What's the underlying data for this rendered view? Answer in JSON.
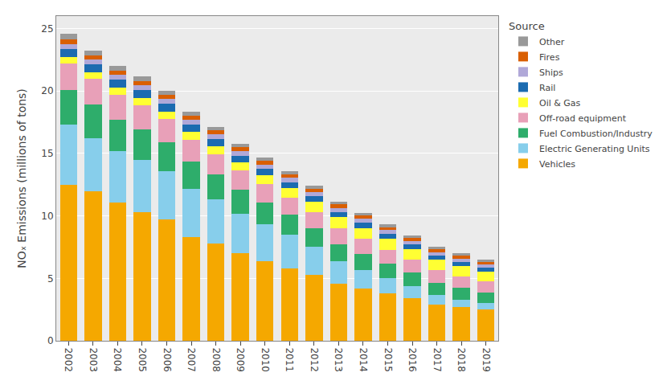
{
  "chart_data": {
    "type": "bar",
    "stacked": true,
    "categories": [
      "2002",
      "2003",
      "2004",
      "2005",
      "2006",
      "2007",
      "2008",
      "2009",
      "2010",
      "2011",
      "2012",
      "2013",
      "2014",
      "2015",
      "2016",
      "2017",
      "2018",
      "2019"
    ],
    "series": [
      {
        "name": "Vehicles",
        "color": "#F5A800",
        "values": [
          12.5,
          12.0,
          11.1,
          10.3,
          9.7,
          8.3,
          7.8,
          7.0,
          6.4,
          5.8,
          5.3,
          4.6,
          4.2,
          3.8,
          3.4,
          2.9,
          2.7,
          2.5
        ]
      },
      {
        "name": "Electric Generating Units",
        "color": "#87CEEB",
        "values": [
          4.8,
          4.2,
          4.1,
          4.2,
          3.9,
          3.85,
          3.5,
          3.2,
          2.95,
          2.7,
          2.2,
          1.75,
          1.45,
          1.2,
          0.95,
          0.75,
          0.6,
          0.5
        ]
      },
      {
        "name": "Fuel Combustion/Industry",
        "color": "#2EAD6B",
        "values": [
          2.8,
          2.7,
          2.5,
          2.4,
          2.3,
          2.2,
          2.0,
          1.9,
          1.75,
          1.6,
          1.5,
          1.4,
          1.3,
          1.2,
          1.1,
          1.0,
          0.92,
          0.85
        ]
      },
      {
        "name": "Off-road equipment",
        "color": "#E8A0B8",
        "values": [
          2.1,
          2.05,
          2.0,
          1.95,
          1.85,
          1.75,
          1.65,
          1.55,
          1.45,
          1.38,
          1.3,
          1.25,
          1.2,
          1.1,
          1.05,
          1.0,
          0.95,
          0.9
        ]
      },
      {
        "name": "Oil & Gas",
        "color": "#FFFF33",
        "values": [
          0.55,
          0.55,
          0.6,
          0.6,
          0.62,
          0.65,
          0.65,
          0.65,
          0.7,
          0.75,
          0.82,
          0.88,
          0.88,
          0.85,
          0.82,
          0.82,
          0.8,
          0.78
        ]
      },
      {
        "name": "Rail",
        "color": "#1B6BB0",
        "values": [
          0.62,
          0.62,
          0.62,
          0.62,
          0.6,
          0.58,
          0.56,
          0.53,
          0.5,
          0.48,
          0.46,
          0.44,
          0.42,
          0.4,
          0.38,
          0.36,
          0.34,
          0.32
        ]
      },
      {
        "name": "Ships",
        "color": "#B0A8D8",
        "values": [
          0.4,
          0.4,
          0.4,
          0.4,
          0.39,
          0.38,
          0.37,
          0.36,
          0.35,
          0.34,
          0.33,
          0.32,
          0.31,
          0.3,
          0.29,
          0.28,
          0.27,
          0.26
        ]
      },
      {
        "name": "Fires",
        "color": "#D95F02",
        "values": [
          0.38,
          0.33,
          0.33,
          0.33,
          0.33,
          0.33,
          0.32,
          0.31,
          0.3,
          0.29,
          0.28,
          0.27,
          0.26,
          0.25,
          0.24,
          0.23,
          0.22,
          0.21
        ]
      },
      {
        "name": "Other",
        "color": "#999999",
        "values": [
          0.42,
          0.38,
          0.38,
          0.35,
          0.33,
          0.32,
          0.3,
          0.29,
          0.28,
          0.27,
          0.26,
          0.25,
          0.24,
          0.23,
          0.22,
          0.21,
          0.2,
          0.19
        ]
      }
    ],
    "ylabel": "NOₓ Emissions (millions of tons)",
    "legend_title": "Source",
    "ylim": [
      0,
      26
    ],
    "yticks": [
      0,
      5,
      10,
      15,
      20,
      25
    ],
    "grid": true,
    "legend": "right"
  }
}
